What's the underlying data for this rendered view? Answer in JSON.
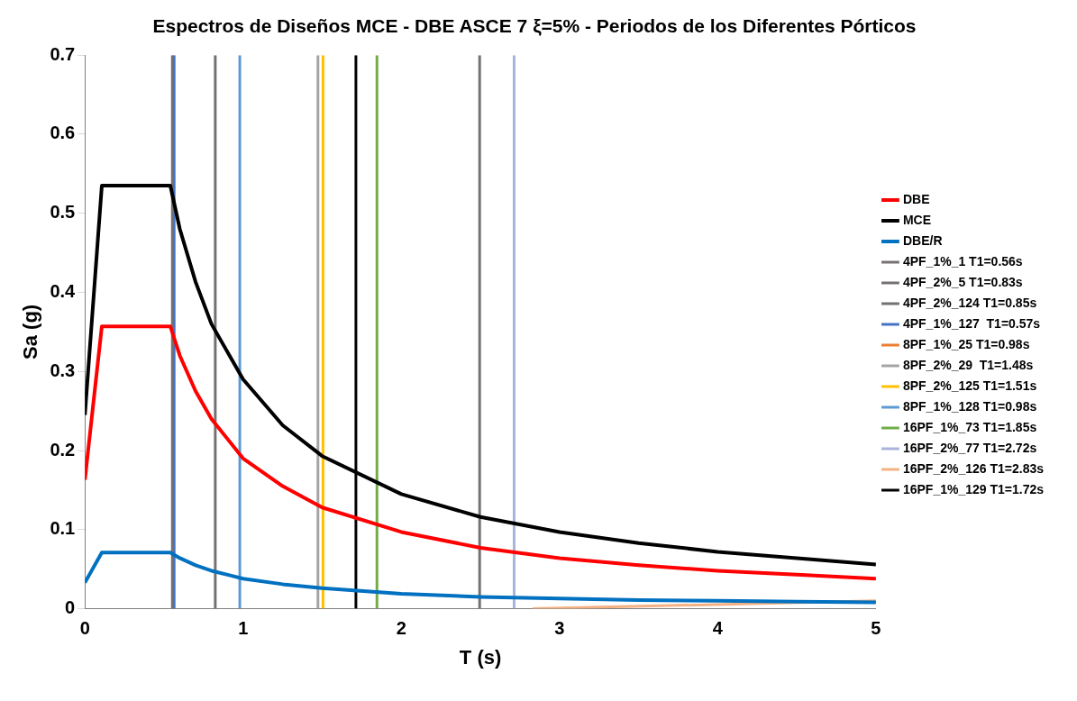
{
  "chart_data": {
    "type": "line",
    "title": "Espectros de Diseños MCE - DBE ASCE 7 ξ=5% - Periodos de los Diferentes Pórticos",
    "xlabel": "T (s)",
    "ylabel": "Sa (g)",
    "xlim": [
      0,
      5
    ],
    "xticks": [
      0,
      1,
      2,
      3,
      4,
      5
    ],
    "ylim": [
      0,
      0.7
    ],
    "yticks": [
      0,
      0.1,
      0.2,
      0.3,
      0.4,
      0.5,
      0.6,
      0.7
    ],
    "grid": false,
    "legend": "right",
    "marker": "none",
    "line_style": "solid",
    "series": [
      {
        "name": "DBE",
        "color": "#ff0000",
        "x": [
          0,
          0.107,
          0.54,
          0.6,
          0.7,
          0.8,
          1,
          1.25,
          1.5,
          2,
          2.5,
          3,
          3.5,
          4,
          4.5,
          5
        ],
        "values": [
          0.163,
          0.357,
          0.357,
          0.32,
          0.275,
          0.24,
          0.19,
          0.155,
          0.128,
          0.097,
          0.077,
          0.064,
          0.055,
          0.048,
          0.043,
          0.038
        ]
      },
      {
        "name": "MCE",
        "color": "#000000",
        "x": [
          0,
          0.107,
          0.54,
          0.6,
          0.7,
          0.8,
          1,
          1.25,
          1.5,
          2,
          2.5,
          3,
          3.5,
          4,
          4.5,
          5
        ],
        "values": [
          0.245,
          0.535,
          0.535,
          0.48,
          0.413,
          0.36,
          0.29,
          0.232,
          0.193,
          0.145,
          0.116,
          0.097,
          0.083,
          0.072,
          0.064,
          0.056
        ]
      },
      {
        "name": "DBE/R",
        "color": "#0070c0",
        "x": [
          0,
          0.107,
          0.54,
          0.6,
          0.7,
          0.8,
          1,
          1.25,
          1.5,
          2,
          2.5,
          3,
          3.5,
          4,
          4.5,
          5
        ],
        "values": [
          0.033,
          0.071,
          0.071,
          0.064,
          0.055,
          0.048,
          0.038,
          0.031,
          0.026,
          0.019,
          0.015,
          0.013,
          0.011,
          0.01,
          0.009,
          0.008
        ]
      },
      {
        "name": "4PF_1%_1 T1=0.56s",
        "color": "#767171",
        "x": [
          0.553,
          0.553
        ],
        "values": [
          0,
          0.7
        ]
      },
      {
        "name": "4PF_2%_5 T1=0.83s",
        "color": "#767171",
        "x": [
          0.824,
          0.824
        ],
        "values": [
          0,
          0.7
        ]
      },
      {
        "name": "4PF_2%_124 T1=0.85s",
        "color": "#767171",
        "x": [
          2.495,
          2.495
        ],
        "values": [
          0,
          0.7
        ]
      },
      {
        "name": "4PF_1%_127  T1=0.57s",
        "color": "#4472c4",
        "x": [
          0.564,
          0.564
        ],
        "values": [
          0,
          0.7
        ]
      },
      {
        "name": "8PF_1%_25 T1=0.98s",
        "color": "#ed7d31",
        "values": [
          null,
          null
        ]
      },
      {
        "name": "8PF_2%_29  T1=1.48s",
        "color": "#a5a5a5",
        "x": [
          1.473,
          1.473
        ],
        "values": [
          0,
          0.7
        ]
      },
      {
        "name": "8PF_2%_125 T1=1.51s",
        "color": "#ffc000",
        "x": [
          1.505,
          1.505
        ],
        "values": [
          0,
          0.7
        ]
      },
      {
        "name": "8PF_1%_128 T1=0.98s",
        "color": "#5b9bd5",
        "x": [
          0.979,
          0.979
        ],
        "values": [
          0,
          0.7
        ]
      },
      {
        "name": "16PF_1%_73 T1=1.85s",
        "color": "#70ad47",
        "x": [
          1.846,
          1.846
        ],
        "values": [
          0,
          0.7
        ]
      },
      {
        "name": "16PF_2%_77 T1=2.72s",
        "color": "#a9b4dc",
        "x": [
          2.713,
          2.713
        ],
        "values": [
          0,
          0.7
        ]
      },
      {
        "name": "16PF_2%_126 T1=2.83s",
        "color": "#f4b183",
        "x": [
          2.83,
          5
        ],
        "values": [
          0,
          0.01
        ]
      },
      {
        "name": "16PF_1%_129 T1=1.72s",
        "color": "#000000",
        "x": [
          1.713,
          1.713
        ],
        "values": [
          0,
          0.7
        ]
      }
    ]
  }
}
